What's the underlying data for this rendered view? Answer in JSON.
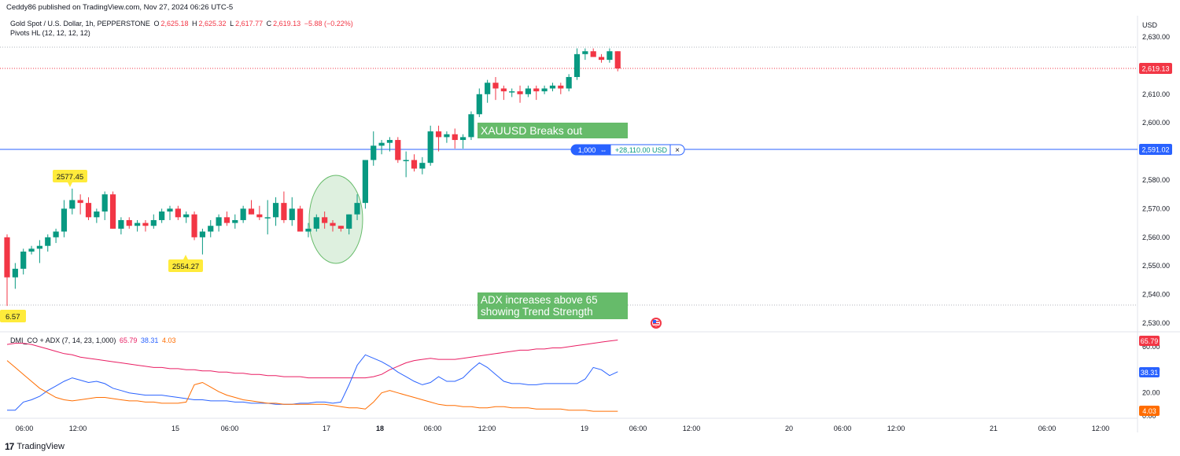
{
  "header": {
    "published": "Ceddy86 published on TradingView.com, Nov 27, 2024 06:26 UTC-5"
  },
  "legend": {
    "symbol": "Gold Spot / U.S. Dollar, 1h, PEPPERSTONE",
    "o_label": "O",
    "o": "2,625.18",
    "h_label": "H",
    "h": "2,625.32",
    "l_label": "L",
    "l": "2,617.77",
    "c_label": "C",
    "c": "2,619.13",
    "change": "−5.88 (−0.22%)",
    "pivots": "Pivots HL (12, 12, 12, 12)"
  },
  "axis": {
    "currency": "USD",
    "price_ticks": [
      "2,630.00",
      "2,620.00",
      "2,610.00",
      "2,600.00",
      "2,590.00",
      "2,580.00",
      "2,570.00",
      "2,560.00",
      "2,550.00",
      "2,540.00",
      "2,530.00"
    ],
    "indicator_ticks": [
      "60.00",
      "40.00",
      "20.00",
      "0.00"
    ],
    "time_labels": [
      "06:00",
      "12:00",
      "15",
      "06:00",
      "17",
      "18",
      "06:00",
      "12:00",
      "19",
      "06:00",
      "12:00",
      "20",
      "06:00",
      "12:00",
      "21",
      "06:00",
      "12:00"
    ]
  },
  "price_labels": {
    "last": "2,619.13",
    "position": "2,591.02",
    "hidden": "2,620.00"
  },
  "position_line": {
    "qty": "1,000",
    "pnl": "+28,110.00 USD",
    "close": "×",
    "arrows": "⇔"
  },
  "pivots": {
    "high": "2577.45",
    "low": "2554.27",
    "left": "6.57"
  },
  "annotations": {
    "breakout": "XAUUSD Breaks out",
    "adx_line1": "ADX increases above 65",
    "adx_line2": "showing Trend Strength"
  },
  "indicator": {
    "name": "DMI_CO + ADX (7, 14, 23, 1,000)",
    "adx": "65.79",
    "plus_di": "38.31",
    "minus_di": "4.03"
  },
  "footer": {
    "brand": "TradingView",
    "logo": "17"
  },
  "colors": {
    "up": "#089981",
    "down": "#f23645",
    "adx": "#e91e63",
    "plus_di": "#2962ff",
    "minus_di": "#ff6d00",
    "position_line": "#2962ff",
    "annotation_bg": "#66bb6a",
    "pivot_bg": "#ffeb3b"
  },
  "chart_data": {
    "type": "candlestick",
    "title": "Gold Spot / U.S. Dollar, 1h, PEPPERSTONE",
    "ylim": [
      2526,
      2636
    ],
    "candles": [
      [
        2560,
        2561,
        2536,
        2546
      ],
      [
        2546,
        2551,
        2542,
        2549
      ],
      [
        2549,
        2556,
        2547,
        2555
      ],
      [
        2555,
        2557,
        2554,
        2556
      ],
      [
        2556,
        2559,
        2551,
        2557
      ],
      [
        2557,
        2561,
        2555,
        2560
      ],
      [
        2560,
        2563,
        2558,
        2562
      ],
      [
        2562,
        2573,
        2560,
        2570
      ],
      [
        2570,
        2577,
        2568,
        2573
      ],
      [
        2573,
        2575,
        2568,
        2572
      ],
      [
        2572,
        2574,
        2566,
        2567
      ],
      [
        2567,
        2570,
        2565,
        2569
      ],
      [
        2569,
        2576,
        2566,
        2575
      ],
      [
        2575,
        2576,
        2563,
        2563
      ],
      [
        2563,
        2567,
        2561,
        2566
      ],
      [
        2566,
        2567,
        2563,
        2564
      ],
      [
        2564,
        2566,
        2562,
        2565
      ],
      [
        2565,
        2566,
        2562,
        2564
      ],
      [
        2564,
        2568,
        2563,
        2566
      ],
      [
        2566,
        2570,
        2565,
        2569
      ],
      [
        2569,
        2571,
        2566,
        2570
      ],
      [
        2570,
        2571,
        2566,
        2567
      ],
      [
        2567,
        2569,
        2565,
        2568
      ],
      [
        2568,
        2569,
        2559,
        2560
      ],
      [
        2560,
        2563,
        2554,
        2562
      ],
      [
        2562,
        2566,
        2560,
        2564
      ],
      [
        2564,
        2568,
        2562,
        2567
      ],
      [
        2567,
        2569,
        2564,
        2565
      ],
      [
        2565,
        2568,
        2563,
        2566
      ],
      [
        2566,
        2571,
        2565,
        2570
      ],
      [
        2570,
        2573,
        2568,
        2568
      ],
      [
        2568,
        2571,
        2566,
        2567
      ],
      [
        2567,
        2573,
        2561,
        2567
      ],
      [
        2567,
        2574,
        2564,
        2572
      ],
      [
        2572,
        2576,
        2565,
        2566
      ],
      [
        2566,
        2574,
        2564,
        2570
      ],
      [
        2570,
        2571,
        2562,
        2562
      ],
      [
        2562,
        2565,
        2560,
        2563
      ],
      [
        2563,
        2568,
        2562,
        2567
      ],
      [
        2567,
        2569,
        2563,
        2565
      ],
      [
        2565,
        2566,
        2562,
        2564
      ],
      [
        2564,
        2564,
        2562,
        2563
      ],
      [
        2563,
        2568,
        2561,
        2568
      ],
      [
        2568,
        2575,
        2566,
        2572
      ],
      [
        2572,
        2587,
        2570,
        2587
      ],
      [
        2587,
        2597,
        2585,
        2592
      ],
      [
        2592,
        2594,
        2589,
        2593
      ],
      [
        2593,
        2595,
        2590,
        2594
      ],
      [
        2594,
        2595,
        2586,
        2587
      ],
      [
        2587,
        2590,
        2581,
        2587
      ],
      [
        2587,
        2589,
        2583,
        2584
      ],
      [
        2584,
        2588,
        2582,
        2586
      ],
      [
        2586,
        2599,
        2585,
        2597
      ],
      [
        2597,
        2599,
        2590,
        2595
      ],
      [
        2595,
        2597,
        2593,
        2596
      ],
      [
        2596,
        2598,
        2591,
        2594
      ],
      [
        2594,
        2596,
        2591,
        2595
      ],
      [
        2595,
        2604,
        2594,
        2603
      ],
      [
        2603,
        2612,
        2602,
        2610
      ],
      [
        2610,
        2615,
        2607,
        2614
      ],
      [
        2614,
        2616,
        2608,
        2612
      ],
      [
        2612,
        2613,
        2608,
        2611
      ],
      [
        2611,
        2612,
        2609,
        2611
      ],
      [
        2611,
        2613,
        2607,
        2610
      ],
      [
        2610,
        2613,
        2609,
        2612
      ],
      [
        2612,
        2613,
        2608,
        2611
      ],
      [
        2611,
        2613,
        2610,
        2612
      ],
      [
        2612,
        2614,
        2611,
        2613
      ],
      [
        2613,
        2614,
        2610,
        2612
      ],
      [
        2612,
        2617,
        2611,
        2616
      ],
      [
        2616,
        2626,
        2615,
        2624
      ],
      [
        2624,
        2626,
        2622,
        2625
      ],
      [
        2625,
        2626,
        2623,
        2623
      ],
      [
        2623,
        2624,
        2621,
        2622
      ],
      [
        2622,
        2626,
        2621,
        2625
      ],
      [
        2625,
        2625,
        2618,
        2619
      ]
    ],
    "position_price": 2591.02,
    "last_price": 2619.13,
    "pivots": [
      {
        "label": "2577.45",
        "index": 9,
        "price": 2577.45,
        "type": "high"
      },
      {
        "label": "2554.27",
        "index": 27,
        "price": 2554.27,
        "type": "low"
      }
    ],
    "indicator": {
      "ylim": [
        0,
        75
      ],
      "series": [
        {
          "name": "ADX",
          "values": [
            62,
            63,
            63,
            62,
            60,
            58,
            56,
            54,
            53,
            51,
            50,
            49,
            48,
            47,
            46,
            45,
            44,
            43,
            42,
            42,
            41,
            41,
            40,
            40,
            39,
            39,
            38,
            38,
            37,
            37,
            36,
            36,
            35,
            35,
            34,
            34,
            34,
            33,
            33,
            33,
            33,
            33,
            33,
            33,
            33,
            34,
            36,
            40,
            43,
            46,
            48,
            49,
            50,
            49,
            49,
            49,
            50,
            51,
            52,
            53,
            54,
            55,
            56,
            57,
            57,
            58,
            58,
            59,
            59,
            60,
            61,
            62,
            63,
            64,
            65,
            65.79
          ]
        },
        {
          "name": "+DI",
          "values": [
            5,
            5,
            12,
            14,
            17,
            22,
            26,
            30,
            33,
            31,
            29,
            30,
            28,
            24,
            22,
            20,
            19,
            18,
            18,
            18,
            17,
            16,
            15,
            14,
            14,
            13,
            13,
            13,
            12,
            12,
            11,
            11,
            11,
            10,
            10,
            10,
            11,
            11,
            12,
            12,
            11,
            12,
            27,
            44,
            53,
            50,
            47,
            43,
            38,
            34,
            30,
            27,
            29,
            34,
            30,
            30,
            33,
            40,
            46,
            42,
            36,
            30,
            28,
            28,
            27,
            27,
            28,
            28,
            28,
            28,
            28,
            32,
            42,
            40,
            35,
            38.31
          ]
        },
        {
          "name": "−DI",
          "values": [
            48,
            42,
            36,
            30,
            24,
            20,
            16,
            14,
            13,
            14,
            15,
            16,
            16,
            15,
            14,
            13,
            13,
            12,
            12,
            11,
            11,
            11,
            12,
            27,
            29,
            25,
            21,
            18,
            16,
            14,
            13,
            12,
            11,
            11,
            10,
            10,
            10,
            10,
            10,
            10,
            9,
            8,
            7,
            7,
            6,
            12,
            20,
            22,
            20,
            18,
            16,
            14,
            12,
            10,
            9,
            9,
            8,
            8,
            7,
            7,
            8,
            8,
            7,
            7,
            7,
            6,
            6,
            6,
            6,
            5,
            5,
            5,
            4,
            4,
            4,
            4.03
          ]
        }
      ]
    }
  }
}
